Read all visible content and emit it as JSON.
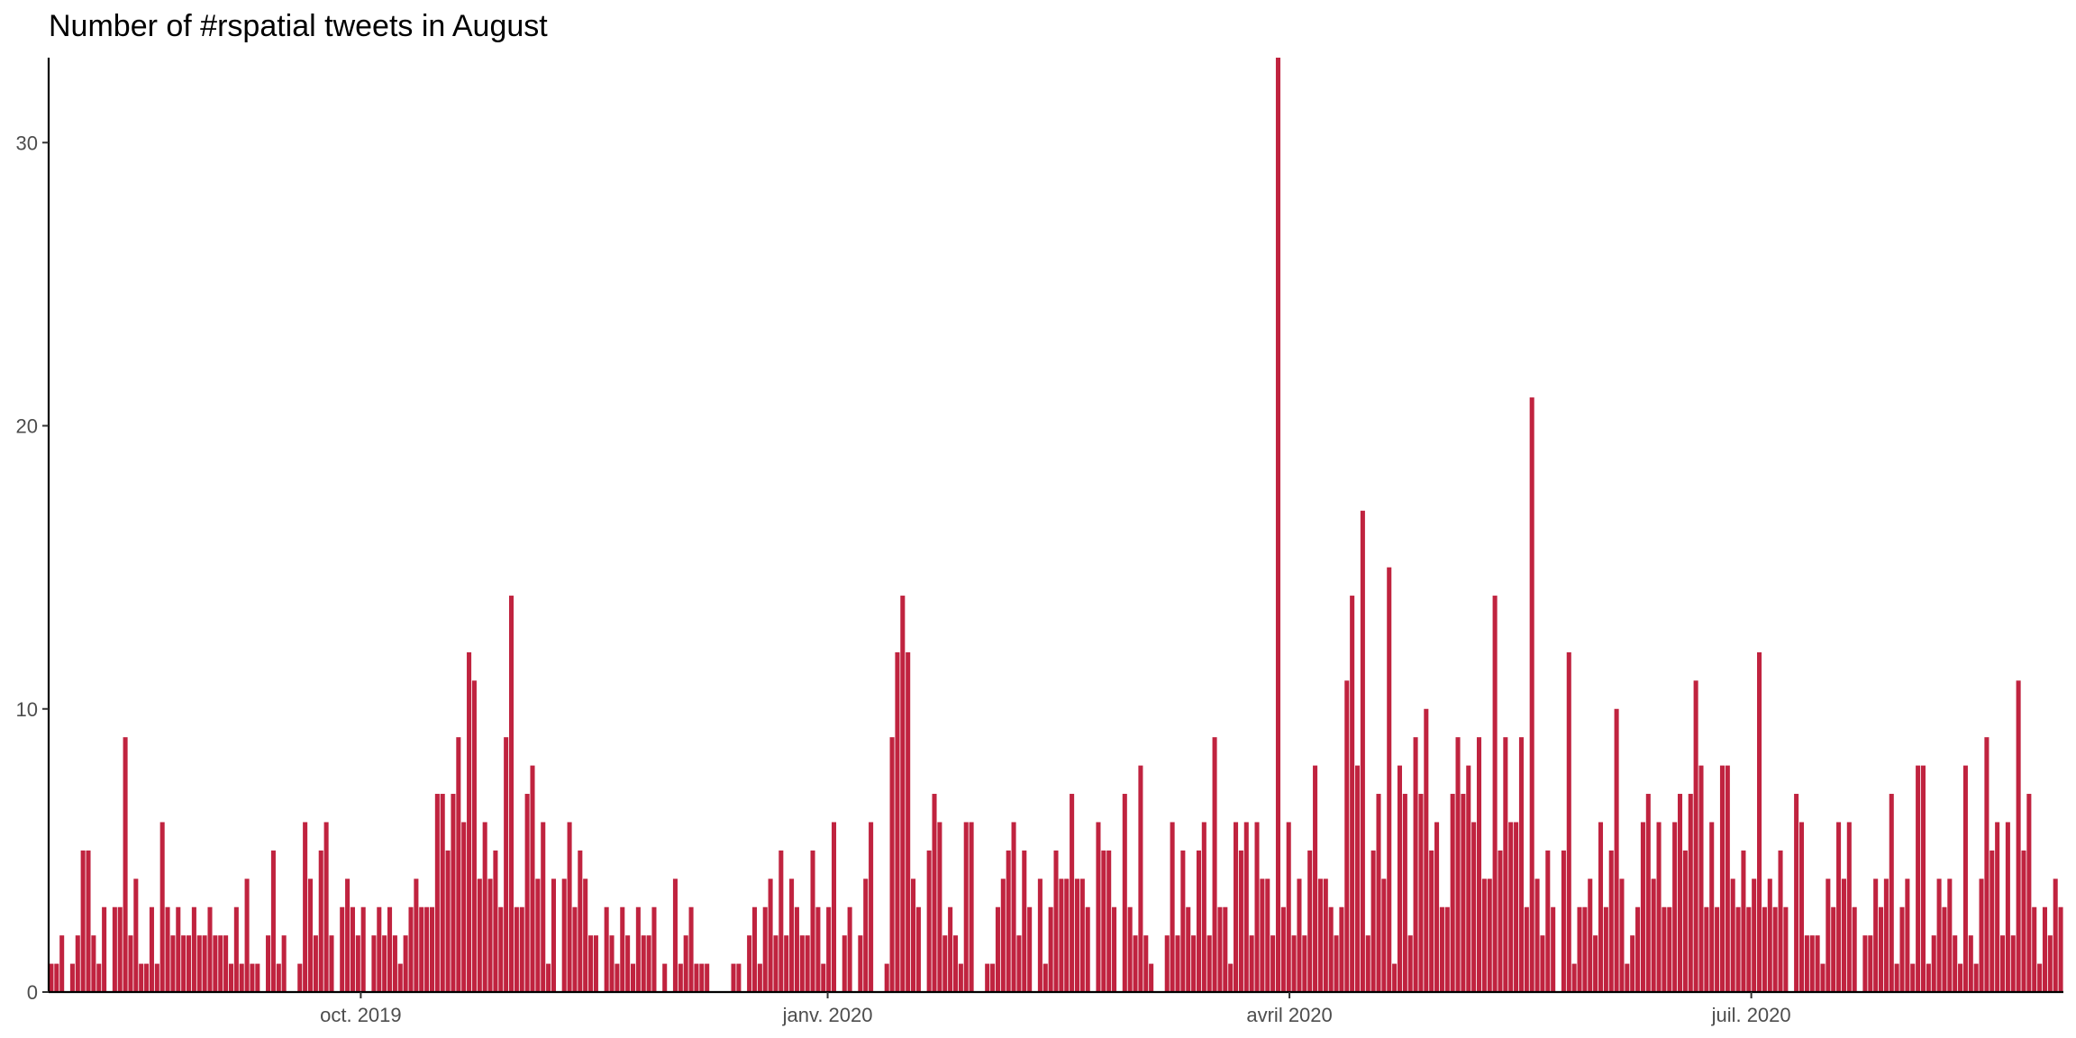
{
  "chart_data": {
    "type": "bar",
    "title": "Number of #rspatial tweets in August",
    "xlabel": "",
    "ylabel": "",
    "ylim": [
      0,
      33
    ],
    "y_ticks": [
      0,
      10,
      20,
      30
    ],
    "x_range": [
      "2019-08-01",
      "2020-08-31"
    ],
    "x_ticks": [
      {
        "date": "2019-10-01",
        "label": "oct. 2019"
      },
      {
        "date": "2020-01-01",
        "label": "janv. 2020"
      },
      {
        "date": "2020-04-01",
        "label": "avril 2020"
      },
      {
        "date": "2020-07-01",
        "label": "juil. 2020"
      }
    ],
    "grid": false,
    "legend": "none",
    "bar_color": "#C0233F",
    "values": [
      1,
      1,
      2,
      0,
      1,
      2,
      5,
      5,
      2,
      1,
      3,
      0,
      3,
      3,
      9,
      2,
      4,
      1,
      1,
      3,
      1,
      6,
      3,
      2,
      3,
      2,
      2,
      3,
      2,
      2,
      3,
      2,
      2,
      2,
      1,
      3,
      1,
      4,
      1,
      1,
      0,
      2,
      5,
      1,
      2,
      0,
      0,
      1,
      6,
      4,
      2,
      5,
      6,
      2,
      0,
      3,
      4,
      3,
      2,
      3,
      0,
      2,
      3,
      2,
      3,
      2,
      1,
      2,
      3,
      4,
      3,
      3,
      3,
      7,
      7,
      5,
      7,
      9,
      6,
      12,
      11,
      4,
      6,
      4,
      5,
      3,
      9,
      14,
      3,
      3,
      7,
      8,
      4,
      6,
      1,
      4,
      0,
      4,
      6,
      3,
      5,
      4,
      2,
      2,
      0,
      3,
      2,
      1,
      3,
      2,
      1,
      3,
      2,
      2,
      3,
      0,
      1,
      0,
      4,
      1,
      2,
      3,
      1,
      1,
      1,
      0,
      0,
      0,
      0,
      1,
      1,
      0,
      2,
      3,
      1,
      3,
      4,
      2,
      5,
      2,
      4,
      3,
      2,
      2,
      5,
      3,
      1,
      3,
      6,
      0,
      2,
      3,
      0,
      2,
      4,
      6,
      0,
      0,
      1,
      9,
      12,
      14,
      12,
      4,
      3,
      0,
      5,
      7,
      6,
      2,
      3,
      2,
      1,
      6,
      6,
      0,
      0,
      1,
      1,
      3,
      4,
      5,
      6,
      2,
      5,
      3,
      0,
      4,
      1,
      3,
      5,
      4,
      4,
      7,
      4,
      4,
      3,
      0,
      6,
      5,
      5,
      3,
      0,
      7,
      3,
      2,
      8,
      2,
      1,
      0,
      0,
      2,
      6,
      2,
      5,
      3,
      2,
      5,
      6,
      2,
      9,
      3,
      3,
      1,
      6,
      5,
      6,
      2,
      6,
      4,
      4,
      2,
      33,
      3,
      6,
      2,
      4,
      2,
      5,
      8,
      4,
      4,
      3,
      2,
      3,
      11,
      14,
      8,
      17,
      2,
      5,
      7,
      4,
      15,
      1,
      8,
      7,
      2,
      9,
      7,
      10,
      5,
      6,
      3,
      3,
      7,
      9,
      7,
      8,
      6,
      9,
      4,
      4,
      14,
      5,
      9,
      6,
      6,
      9,
      3,
      21,
      4,
      2,
      5,
      3,
      0,
      5,
      12,
      1,
      3,
      3,
      4,
      2,
      6,
      3,
      5,
      10,
      4,
      1,
      2,
      3,
      6,
      7,
      4,
      6,
      3,
      3,
      6,
      7,
      5,
      7,
      11,
      8,
      3,
      6,
      3,
      8,
      8,
      4,
      3,
      5,
      3,
      4,
      12,
      3,
      4,
      3,
      5,
      3,
      0,
      7,
      6,
      2,
      2,
      2,
      1,
      4,
      3,
      6,
      4,
      6,
      3,
      0,
      2,
      2,
      4,
      3,
      4,
      7,
      1,
      3,
      4,
      1,
      8,
      8,
      1,
      2,
      4,
      3,
      4,
      2,
      1,
      8,
      2,
      1,
      4,
      9,
      5,
      6,
      2,
      6,
      2,
      11,
      5,
      7,
      3,
      1,
      3,
      2,
      4,
      3
    ]
  }
}
